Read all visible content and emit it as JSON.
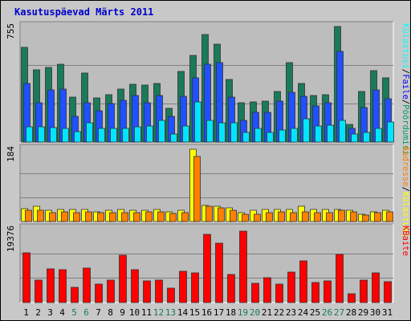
{
  "chart_data": {
    "type": "bar",
    "title": "Kasutuspäevad Märts 2011",
    "categories": [
      "1",
      "2",
      "3",
      "4",
      "5",
      "6",
      "7",
      "8",
      "9",
      "10",
      "11",
      "12",
      "13",
      "14",
      "15",
      "16",
      "17",
      "18",
      "19",
      "20",
      "21",
      "22",
      "23",
      "24",
      "25",
      "26",
      "27",
      "28",
      "29",
      "30",
      "31"
    ],
    "weekend_days": [
      "5",
      "6",
      "12",
      "13",
      "19",
      "20",
      "26",
      "27"
    ],
    "panels": [
      {
        "name": "top",
        "ymax": 755,
        "ymax_label": "755",
        "right_labels": [
          {
            "text": "Külastusi",
            "color": "#00ffff"
          },
          {
            "text": "/",
            "color": "#000000"
          },
          {
            "text": "Faile",
            "color": "#0000ff"
          },
          {
            "text": "/",
            "color": "#000000"
          },
          {
            "text": "Pöördumisi",
            "color": "#00a060"
          }
        ],
        "series": [
          {
            "color": "#1a7a5a",
            "values": [
              620,
              470,
              490,
              510,
              295,
              450,
              290,
              310,
              345,
              375,
              370,
              385,
              220,
              460,
              565,
              705,
              640,
              410,
              255,
              260,
              265,
              330,
              520,
              385,
              305,
              310,
              755,
              115,
              330,
              465,
              420
            ]
          },
          {
            "color": "#2050ff",
            "values": [
              385,
              255,
              340,
              345,
              170,
              255,
              205,
              250,
              275,
              305,
              255,
              305,
              170,
              300,
              420,
              510,
              520,
              295,
              140,
              195,
              195,
              265,
              325,
              300,
              235,
              255,
              590,
              90,
              225,
              340,
              285
            ]
          },
          {
            "color": "#00e5ff",
            "values": [
              100,
              100,
              95,
              90,
              70,
              125,
              90,
              90,
              90,
              100,
              105,
              140,
              50,
              105,
              260,
              140,
              125,
              125,
              65,
              90,
              65,
              80,
              90,
              150,
              105,
              110,
              140,
              50,
              65,
              90,
              130
            ]
          }
        ]
      },
      {
        "name": "middle",
        "ymax": 184,
        "ymax_label": "184",
        "right_labels": [
          {
            "text": "Aadresse",
            "color": "#ff8000"
          },
          {
            "text": "/",
            "color": "#000000"
          },
          {
            "text": "Külastusi",
            "color": "#ffff00"
          }
        ],
        "series": [
          {
            "color": "#ffff00",
            "values": [
              33,
              38,
              28,
              31,
              31,
              31,
              25,
              28,
              31,
              28,
              28,
              31,
              25,
              28,
              184,
              41,
              38,
              34,
              22,
              28,
              31,
              31,
              31,
              38,
              31,
              31,
              31,
              28,
              19,
              25,
              28
            ]
          },
          {
            "color": "#ff8000",
            "values": [
              28,
              28,
              22,
              25,
              22,
              25,
              22,
              22,
              22,
              22,
              25,
              25,
              20,
              22,
              165,
              38,
              34,
              28,
              19,
              19,
              22,
              25,
              22,
              25,
              22,
              22,
              28,
              25,
              16,
              22,
              25
            ]
          }
        ]
      },
      {
        "name": "bottom",
        "ymax": 19376,
        "ymax_label": "19376",
        "right_labels": [
          {
            "text": "KBaite",
            "color": "#ff0000"
          }
        ],
        "series": [
          {
            "color": "#ff0000",
            "values": [
              13000,
              6000,
              8800,
              8600,
              4000,
              9000,
              4800,
              5800,
              12400,
              8600,
              5700,
              5800,
              3800,
              8200,
              7800,
              17800,
              15500,
              7300,
              18700,
              5100,
              6500,
              4800,
              7900,
              11000,
              5200,
              5600,
              12700,
              2400,
              5900,
              7700,
              5400
            ]
          }
        ]
      }
    ]
  }
}
